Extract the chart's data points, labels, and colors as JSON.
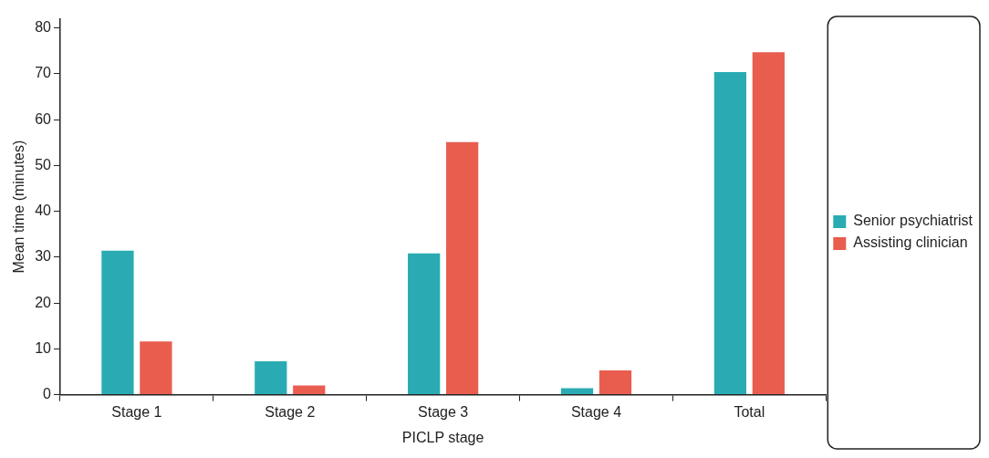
{
  "chart_data": {
    "type": "bar",
    "xlabel": "PICLP stage",
    "ylabel": "Mean time (minutes)",
    "categories": [
      "Stage 1",
      "Stage 2",
      "Stage 3",
      "Stage 4",
      "Total"
    ],
    "series": [
      {
        "name": "Senior psychiatrist",
        "color": "#2aabb3",
        "values": [
          31.4,
          7.3,
          30.8,
          1.4,
          70.4
        ]
      },
      {
        "name": "Assisting clinician",
        "color": "#e95d4f",
        "values": [
          11.6,
          2.0,
          55.1,
          5.3,
          74.7
        ]
      }
    ],
    "ylim": [
      0,
      82
    ],
    "yticks": [
      0,
      10,
      20,
      30,
      40,
      50,
      60,
      70,
      80
    ],
    "grid": false,
    "legend": "right"
  }
}
